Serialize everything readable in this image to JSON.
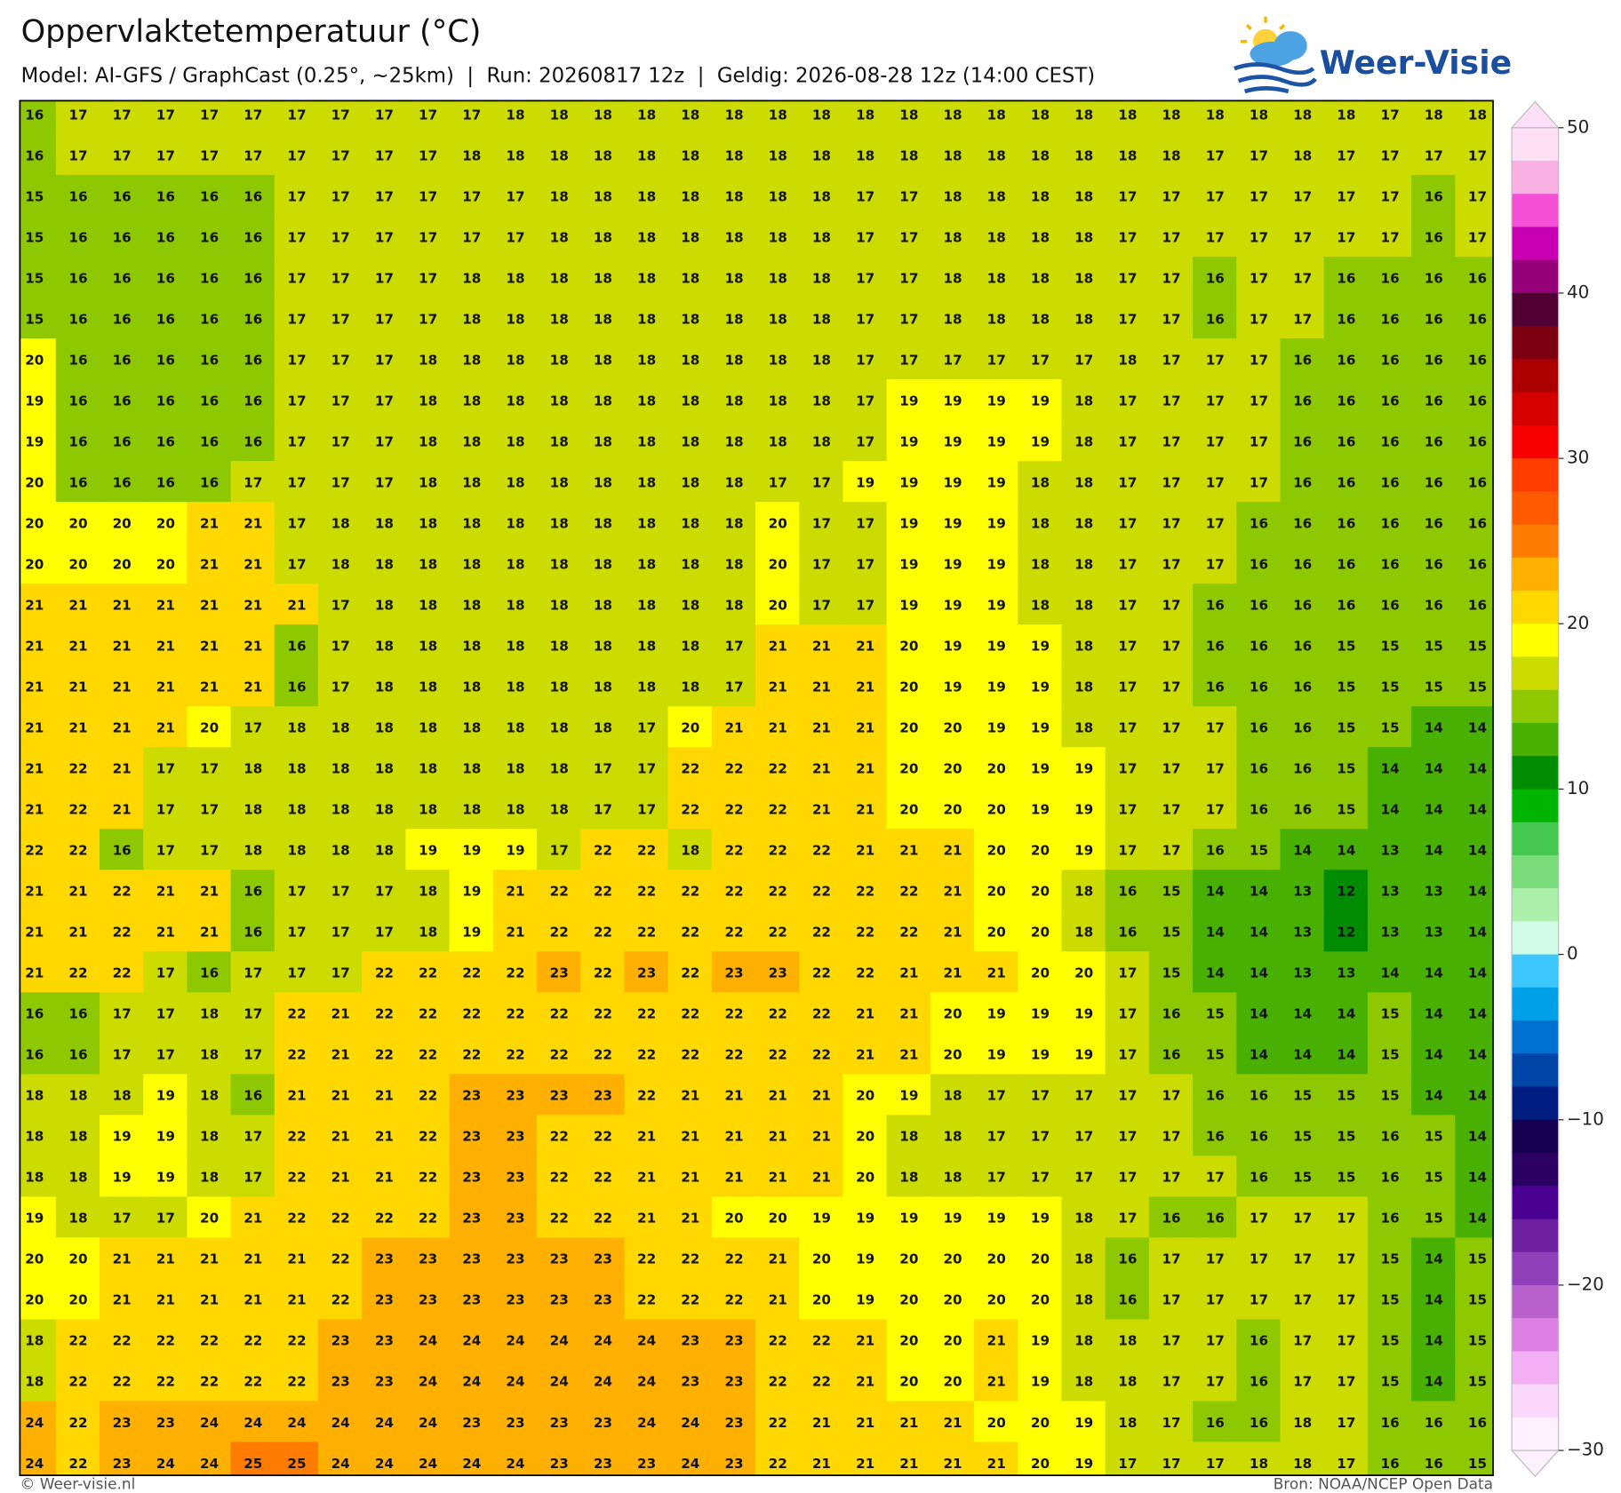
{
  "header": {
    "title": "Oppervlaktetemperatuur (°C)",
    "subtitle": "Model: AI-GFS / GraphCast (0.25°, ~25km)  |  Run: 20260817 12z  |  Geldig: 2026-08-28 12z (14:00 CEST)",
    "logo": "Weer-Visie"
  },
  "map": {
    "grid": [
      [
        16,
        17,
        17,
        17,
        17,
        17,
        17,
        17,
        17,
        17,
        17,
        18,
        18,
        18,
        18,
        18,
        18,
        18,
        18,
        18,
        18,
        18,
        18,
        18,
        18,
        18,
        18,
        18,
        18,
        18,
        18,
        17,
        18,
        18
      ],
      [
        16,
        17,
        17,
        17,
        17,
        17,
        17,
        17,
        17,
        17,
        18,
        18,
        18,
        18,
        18,
        18,
        18,
        18,
        18,
        18,
        18,
        18,
        18,
        18,
        18,
        18,
        18,
        17,
        17,
        18,
        17,
        17,
        17,
        17
      ],
      [
        15,
        16,
        16,
        16,
        16,
        16,
        17,
        17,
        17,
        17,
        17,
        17,
        18,
        18,
        18,
        18,
        18,
        18,
        18,
        17,
        17,
        18,
        18,
        18,
        18,
        17,
        17,
        17,
        17,
        17,
        17,
        17,
        16,
        17
      ],
      [
        15,
        16,
        16,
        16,
        16,
        16,
        17,
        17,
        17,
        17,
        17,
        17,
        18,
        18,
        18,
        18,
        18,
        18,
        18,
        17,
        17,
        18,
        18,
        18,
        18,
        17,
        17,
        17,
        17,
        17,
        17,
        17,
        16,
        17
      ],
      [
        15,
        16,
        16,
        16,
        16,
        16,
        17,
        17,
        17,
        17,
        18,
        18,
        18,
        18,
        18,
        18,
        18,
        18,
        18,
        17,
        17,
        18,
        18,
        18,
        18,
        17,
        17,
        16,
        17,
        17,
        16,
        16,
        16,
        16
      ],
      [
        15,
        16,
        16,
        16,
        16,
        16,
        17,
        17,
        17,
        17,
        18,
        18,
        18,
        18,
        18,
        18,
        18,
        18,
        18,
        17,
        17,
        18,
        18,
        18,
        18,
        17,
        17,
        16,
        17,
        17,
        16,
        16,
        16,
        16
      ],
      [
        20,
        16,
        16,
        16,
        16,
        16,
        17,
        17,
        17,
        18,
        18,
        18,
        18,
        18,
        18,
        18,
        18,
        18,
        18,
        17,
        17,
        17,
        17,
        17,
        17,
        18,
        17,
        17,
        17,
        16,
        16,
        16,
        16,
        16
      ],
      [
        19,
        16,
        16,
        16,
        16,
        16,
        17,
        17,
        17,
        18,
        18,
        18,
        18,
        18,
        18,
        18,
        18,
        18,
        18,
        17,
        19,
        19,
        19,
        19,
        18,
        17,
        17,
        17,
        17,
        16,
        16,
        16,
        16,
        16
      ],
      [
        19,
        16,
        16,
        16,
        16,
        16,
        17,
        17,
        17,
        18,
        18,
        18,
        18,
        18,
        18,
        18,
        18,
        18,
        18,
        17,
        19,
        19,
        19,
        19,
        18,
        17,
        17,
        17,
        17,
        16,
        16,
        16,
        16,
        16
      ],
      [
        20,
        16,
        16,
        16,
        16,
        17,
        17,
        17,
        17,
        18,
        18,
        18,
        18,
        18,
        18,
        18,
        18,
        17,
        17,
        19,
        19,
        19,
        19,
        18,
        18,
        17,
        17,
        17,
        17,
        16,
        16,
        16,
        16,
        16
      ],
      [
        20,
        20,
        20,
        20,
        21,
        21,
        17,
        18,
        18,
        18,
        18,
        18,
        18,
        18,
        18,
        18,
        18,
        20,
        17,
        17,
        19,
        19,
        19,
        18,
        18,
        17,
        17,
        17,
        16,
        16,
        16,
        16,
        16,
        16
      ],
      [
        20,
        20,
        20,
        20,
        21,
        21,
        17,
        18,
        18,
        18,
        18,
        18,
        18,
        18,
        18,
        18,
        18,
        20,
        17,
        17,
        19,
        19,
        19,
        18,
        18,
        17,
        17,
        17,
        16,
        16,
        16,
        16,
        16,
        16
      ],
      [
        21,
        21,
        21,
        21,
        21,
        21,
        21,
        17,
        18,
        18,
        18,
        18,
        18,
        18,
        18,
        18,
        18,
        20,
        17,
        17,
        19,
        19,
        19,
        18,
        18,
        17,
        17,
        16,
        16,
        16,
        16,
        16,
        16,
        16
      ],
      [
        21,
        21,
        21,
        21,
        21,
        21,
        16,
        17,
        18,
        18,
        18,
        18,
        18,
        18,
        18,
        18,
        17,
        21,
        21,
        21,
        20,
        19,
        19,
        19,
        18,
        17,
        17,
        16,
        16,
        16,
        15,
        15,
        15,
        15
      ],
      [
        21,
        21,
        21,
        21,
        21,
        21,
        16,
        17,
        18,
        18,
        18,
        18,
        18,
        18,
        18,
        18,
        17,
        21,
        21,
        21,
        20,
        19,
        19,
        19,
        18,
        17,
        17,
        16,
        16,
        16,
        15,
        15,
        15,
        15
      ],
      [
        21,
        21,
        21,
        21,
        20,
        17,
        18,
        18,
        18,
        18,
        18,
        18,
        18,
        18,
        17,
        20,
        21,
        21,
        21,
        21,
        20,
        20,
        19,
        19,
        18,
        17,
        17,
        17,
        16,
        16,
        15,
        15,
        14,
        14
      ],
      [
        21,
        22,
        21,
        17,
        17,
        18,
        18,
        18,
        18,
        18,
        18,
        18,
        18,
        17,
        17,
        22,
        22,
        22,
        21,
        21,
        20,
        20,
        20,
        19,
        19,
        17,
        17,
        17,
        16,
        16,
        15,
        14,
        14,
        14
      ],
      [
        21,
        22,
        21,
        17,
        17,
        18,
        18,
        18,
        18,
        18,
        18,
        18,
        18,
        17,
        17,
        22,
        22,
        22,
        21,
        21,
        20,
        20,
        20,
        19,
        19,
        17,
        17,
        17,
        16,
        16,
        15,
        14,
        14,
        14
      ],
      [
        22,
        22,
        16,
        17,
        17,
        18,
        18,
        18,
        18,
        19,
        19,
        19,
        17,
        22,
        22,
        18,
        22,
        22,
        22,
        21,
        21,
        21,
        20,
        20,
        19,
        17,
        17,
        16,
        15,
        14,
        14,
        13,
        14,
        14
      ],
      [
        21,
        21,
        22,
        21,
        21,
        16,
        17,
        17,
        17,
        18,
        19,
        21,
        22,
        22,
        22,
        22,
        22,
        22,
        22,
        22,
        22,
        21,
        20,
        20,
        18,
        16,
        15,
        14,
        14,
        13,
        12,
        13,
        13,
        14
      ],
      [
        21,
        21,
        22,
        21,
        21,
        16,
        17,
        17,
        17,
        18,
        19,
        21,
        22,
        22,
        22,
        22,
        22,
        22,
        22,
        22,
        22,
        21,
        20,
        20,
        18,
        16,
        15,
        14,
        14,
        13,
        12,
        13,
        13,
        14
      ],
      [
        21,
        22,
        22,
        17,
        16,
        17,
        17,
        17,
        22,
        22,
        22,
        22,
        23,
        22,
        23,
        22,
        23,
        23,
        22,
        22,
        21,
        21,
        21,
        20,
        20,
        17,
        15,
        14,
        14,
        13,
        13,
        14,
        14,
        14
      ],
      [
        16,
        16,
        17,
        17,
        18,
        17,
        22,
        21,
        22,
        22,
        22,
        22,
        22,
        22,
        22,
        22,
        22,
        22,
        22,
        21,
        21,
        20,
        19,
        19,
        19,
        17,
        16,
        15,
        14,
        14,
        14,
        15,
        14,
        14
      ],
      [
        16,
        16,
        17,
        17,
        18,
        17,
        22,
        21,
        22,
        22,
        22,
        22,
        22,
        22,
        22,
        22,
        22,
        22,
        22,
        21,
        21,
        20,
        19,
        19,
        19,
        17,
        16,
        15,
        14,
        14,
        14,
        15,
        14,
        14
      ],
      [
        18,
        18,
        18,
        19,
        18,
        16,
        21,
        21,
        21,
        22,
        23,
        23,
        23,
        23,
        22,
        21,
        21,
        21,
        21,
        20,
        19,
        18,
        17,
        17,
        17,
        17,
        17,
        16,
        16,
        15,
        15,
        15,
        14,
        14
      ],
      [
        18,
        18,
        19,
        19,
        18,
        17,
        22,
        21,
        21,
        22,
        23,
        23,
        22,
        22,
        21,
        21,
        21,
        21,
        21,
        20,
        18,
        18,
        17,
        17,
        17,
        17,
        17,
        16,
        16,
        15,
        15,
        16,
        15,
        14
      ],
      [
        18,
        18,
        19,
        19,
        18,
        17,
        22,
        21,
        21,
        22,
        23,
        23,
        22,
        22,
        21,
        21,
        21,
        21,
        21,
        20,
        18,
        18,
        17,
        17,
        17,
        17,
        17,
        17,
        16,
        15,
        15,
        16,
        15,
        14
      ],
      [
        19,
        18,
        17,
        17,
        20,
        21,
        22,
        22,
        22,
        22,
        23,
        23,
        22,
        22,
        21,
        21,
        20,
        20,
        19,
        19,
        19,
        19,
        19,
        19,
        18,
        17,
        16,
        16,
        17,
        17,
        17,
        16,
        15,
        14
      ],
      [
        20,
        20,
        21,
        21,
        21,
        21,
        21,
        22,
        23,
        23,
        23,
        23,
        23,
        23,
        22,
        22,
        22,
        21,
        20,
        19,
        20,
        20,
        20,
        20,
        18,
        16,
        17,
        17,
        17,
        17,
        17,
        15,
        14,
        15
      ],
      [
        20,
        20,
        21,
        21,
        21,
        21,
        21,
        22,
        23,
        23,
        23,
        23,
        23,
        23,
        22,
        22,
        22,
        21,
        20,
        19,
        20,
        20,
        20,
        20,
        18,
        16,
        17,
        17,
        17,
        17,
        17,
        15,
        14,
        15
      ],
      [
        18,
        22,
        22,
        22,
        22,
        22,
        22,
        23,
        23,
        24,
        24,
        24,
        24,
        24,
        24,
        23,
        23,
        22,
        22,
        21,
        20,
        20,
        21,
        19,
        18,
        18,
        17,
        17,
        16,
        17,
        17,
        15,
        14,
        15
      ],
      [
        18,
        22,
        22,
        22,
        22,
        22,
        22,
        23,
        23,
        24,
        24,
        24,
        24,
        24,
        24,
        23,
        23,
        22,
        22,
        21,
        20,
        20,
        21,
        19,
        18,
        18,
        17,
        17,
        16,
        17,
        17,
        15,
        14,
        15
      ],
      [
        24,
        22,
        23,
        23,
        24,
        24,
        24,
        24,
        24,
        24,
        23,
        23,
        23,
        23,
        24,
        24,
        23,
        22,
        21,
        21,
        21,
        21,
        20,
        20,
        19,
        18,
        17,
        16,
        16,
        18,
        17,
        16,
        16,
        16
      ],
      [
        24,
        22,
        23,
        24,
        24,
        25,
        25,
        24,
        24,
        24,
        24,
        24,
        23,
        23,
        23,
        24,
        23,
        22,
        21,
        21,
        21,
        21,
        21,
        20,
        19,
        17,
        17,
        17,
        18,
        18,
        17,
        16,
        16,
        15
      ]
    ]
  },
  "colorbar": {
    "lim": [
      -30,
      50
    ],
    "ticks": [
      50,
      40,
      30,
      20,
      10,
      0,
      {
        "value": -10,
        "label": "−10"
      },
      {
        "value": -20,
        "label": "−20"
      },
      {
        "value": -30,
        "label": "−30"
      }
    ],
    "colors": [
      "#fde0f5",
      "#f9b0e2",
      "#f550d5",
      "#c800b4",
      "#940078",
      "#500032",
      "#7c0010",
      "#aa0000",
      "#d40000",
      "#f80000",
      "#ff3c00",
      "#ff5a00",
      "#ff7c00",
      "#ffb000",
      "#ffd800",
      "#ffff00",
      "#cddc00",
      "#8ec800",
      "#48b000",
      "#008c00",
      "#00b400",
      "#44c850",
      "#7adc7a",
      "#aaf0aa",
      "#d2fce6",
      "#3cc8ff",
      "#00a0e8",
      "#0070d0",
      "#0044a8",
      "#001c80",
      "#14004e",
      "#2a0062",
      "#4a0090",
      "#6c20a0",
      "#9040b8",
      "#b860cc",
      "#dc80e4",
      "#f4b0f4",
      "#fcd8fc",
      "#fef0fe"
    ]
  },
  "footer": {
    "left": "© Weer-visie.nl",
    "right": "Bron: NOAA/NCEP Open Data"
  }
}
